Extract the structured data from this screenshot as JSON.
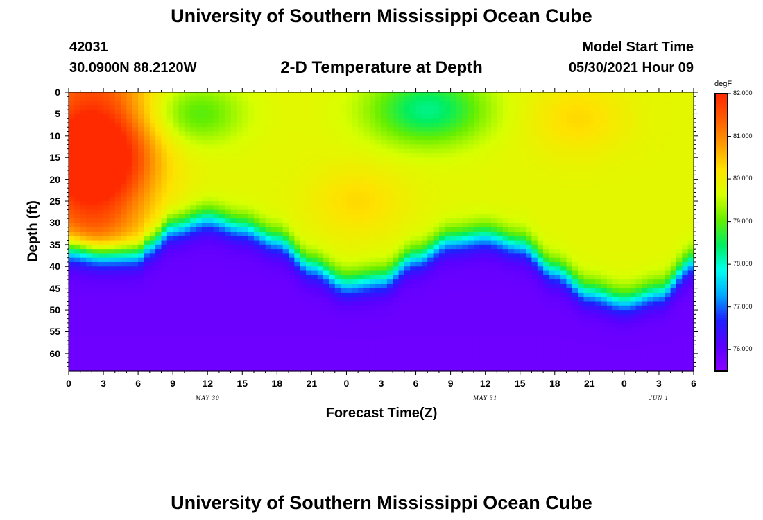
{
  "page": {
    "title_top": "University of Southern Mississippi Ocean Cube",
    "title_bottom": "University of Southern Mississippi Ocean Cube",
    "station_id": "42031",
    "station_coords": "30.0900N  88.2120W",
    "plot_title": "2-D Temperature at Depth",
    "model_start_label": "Model Start Time",
    "model_start_value": "05/30/2021 Hour 09"
  },
  "colors": {
    "scale": [
      "#8b00ff",
      "#5a00ff",
      "#1f1fff",
      "#00a8ff",
      "#00ffee",
      "#00ee60",
      "#66ee00",
      "#d8ff00",
      "#ffe200",
      "#ff9b00",
      "#ff5a00",
      "#ff2a00"
    ]
  },
  "chart_data": {
    "type": "heatmap",
    "title": "2-D Temperature at Depth",
    "xlabel": "Forecast Time(Z)",
    "ylabel": "Depth (ft)",
    "x_ticks": [
      "0",
      "3",
      "6",
      "9",
      "12",
      "15",
      "18",
      "21",
      "0",
      "3",
      "6",
      "9",
      "12",
      "15",
      "18",
      "21",
      "0",
      "3",
      "6"
    ],
    "x_range_hours": [
      0,
      54
    ],
    "y_ticks": [
      "0",
      "5",
      "10",
      "15",
      "20",
      "25",
      "30",
      "35",
      "40",
      "45",
      "50",
      "55",
      "60"
    ],
    "y_range_ft": [
      0,
      64
    ],
    "date_labels": [
      {
        "text": "MAY  30",
        "hour": 12
      },
      {
        "text": "MAY  31",
        "hour": 36
      },
      {
        "text": "JUN  1",
        "hour": 51
      }
    ],
    "colorbar": {
      "unit": "degF",
      "range": [
        75.5,
        82.0
      ],
      "ticks": [
        "82.000",
        "81.000",
        "80.000",
        "79.000",
        "78.000",
        "77.000",
        "76.000"
      ]
    },
    "thermocline_depth_ft": [
      {
        "hour": 0,
        "depth": 36
      },
      {
        "hour": 3,
        "depth": 37
      },
      {
        "hour": 6,
        "depth": 37
      },
      {
        "hour": 7,
        "depth": 35
      },
      {
        "hour": 9,
        "depth": 31
      },
      {
        "hour": 12,
        "depth": 29
      },
      {
        "hour": 15,
        "depth": 31
      },
      {
        "hour": 18,
        "depth": 34
      },
      {
        "hour": 21,
        "depth": 40
      },
      {
        "hour": 24,
        "depth": 44
      },
      {
        "hour": 27,
        "depth": 43
      },
      {
        "hour": 30,
        "depth": 38
      },
      {
        "hour": 33,
        "depth": 34
      },
      {
        "hour": 36,
        "depth": 33
      },
      {
        "hour": 39,
        "depth": 35
      },
      {
        "hour": 42,
        "depth": 41
      },
      {
        "hour": 45,
        "depth": 46
      },
      {
        "hour": 48,
        "depth": 48
      },
      {
        "hour": 51,
        "depth": 46
      },
      {
        "hour": 54,
        "depth": 39
      }
    ],
    "surface_features": [
      {
        "hour": 2,
        "depth": 15,
        "temp": 81.6,
        "spread_h": 5,
        "spread_d": 10
      },
      {
        "hour": 11,
        "depth": 5,
        "temp": 78.9,
        "spread_h": 4,
        "spread_d": 7
      },
      {
        "hour": 31,
        "depth": 4,
        "temp": 78.3,
        "spread_h": 5,
        "spread_d": 8
      },
      {
        "hour": 25,
        "depth": 25,
        "temp": 80.3,
        "spread_h": 4,
        "spread_d": 8
      },
      {
        "hour": 44,
        "depth": 6,
        "temp": 80.3,
        "spread_h": 4,
        "spread_d": 8
      }
    ]
  }
}
